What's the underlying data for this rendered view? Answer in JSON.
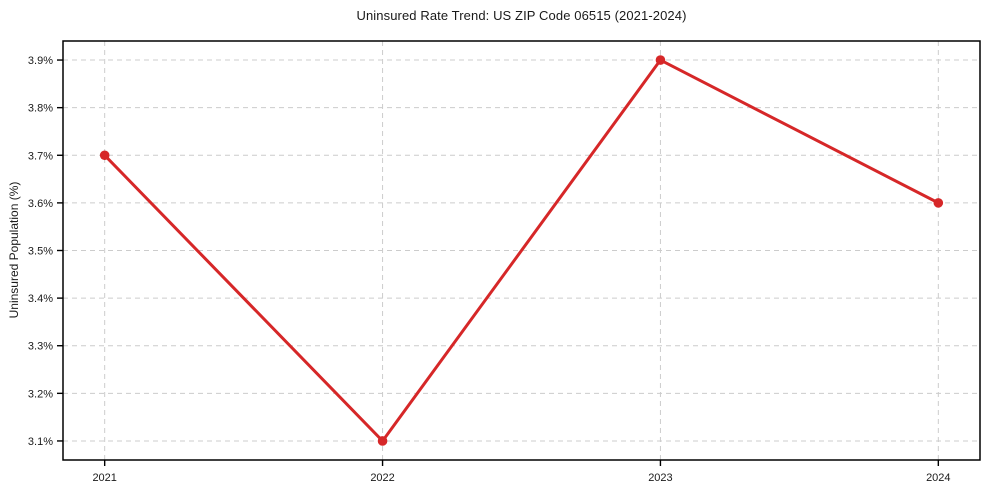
{
  "chart_data": {
    "type": "line",
    "title": "Uninsured Rate Trend: US ZIP Code 06515 (2021-2024)",
    "xlabel": "",
    "ylabel": "Uninsured Population (%)",
    "categories": [
      "2021",
      "2022",
      "2023",
      "2024"
    ],
    "x": [
      2021,
      2022,
      2023,
      2024
    ],
    "values": [
      3.7,
      3.1,
      3.9,
      3.6
    ],
    "value_labels": [
      "3.7%",
      "3.1%",
      "3.9%",
      "3.6%"
    ],
    "yticks": [
      3.1,
      3.2,
      3.3,
      3.4,
      3.5,
      3.6,
      3.7,
      3.8,
      3.9
    ],
    "ytick_labels": [
      "3.1%",
      "3.2%",
      "3.3%",
      "3.4%",
      "3.5%",
      "3.6%",
      "3.7%",
      "3.8%",
      "3.9%"
    ],
    "xlim": [
      2020.85,
      2024.15
    ],
    "ylim": [
      3.06,
      3.94
    ],
    "grid": true,
    "grid_style": "dashed",
    "legend": false,
    "line_color": "#d62728",
    "marker": "circle",
    "grid_color": "#cccccc",
    "axis_color": "#000000",
    "text_color": "#1a1a1a",
    "background": "#ffffff"
  }
}
